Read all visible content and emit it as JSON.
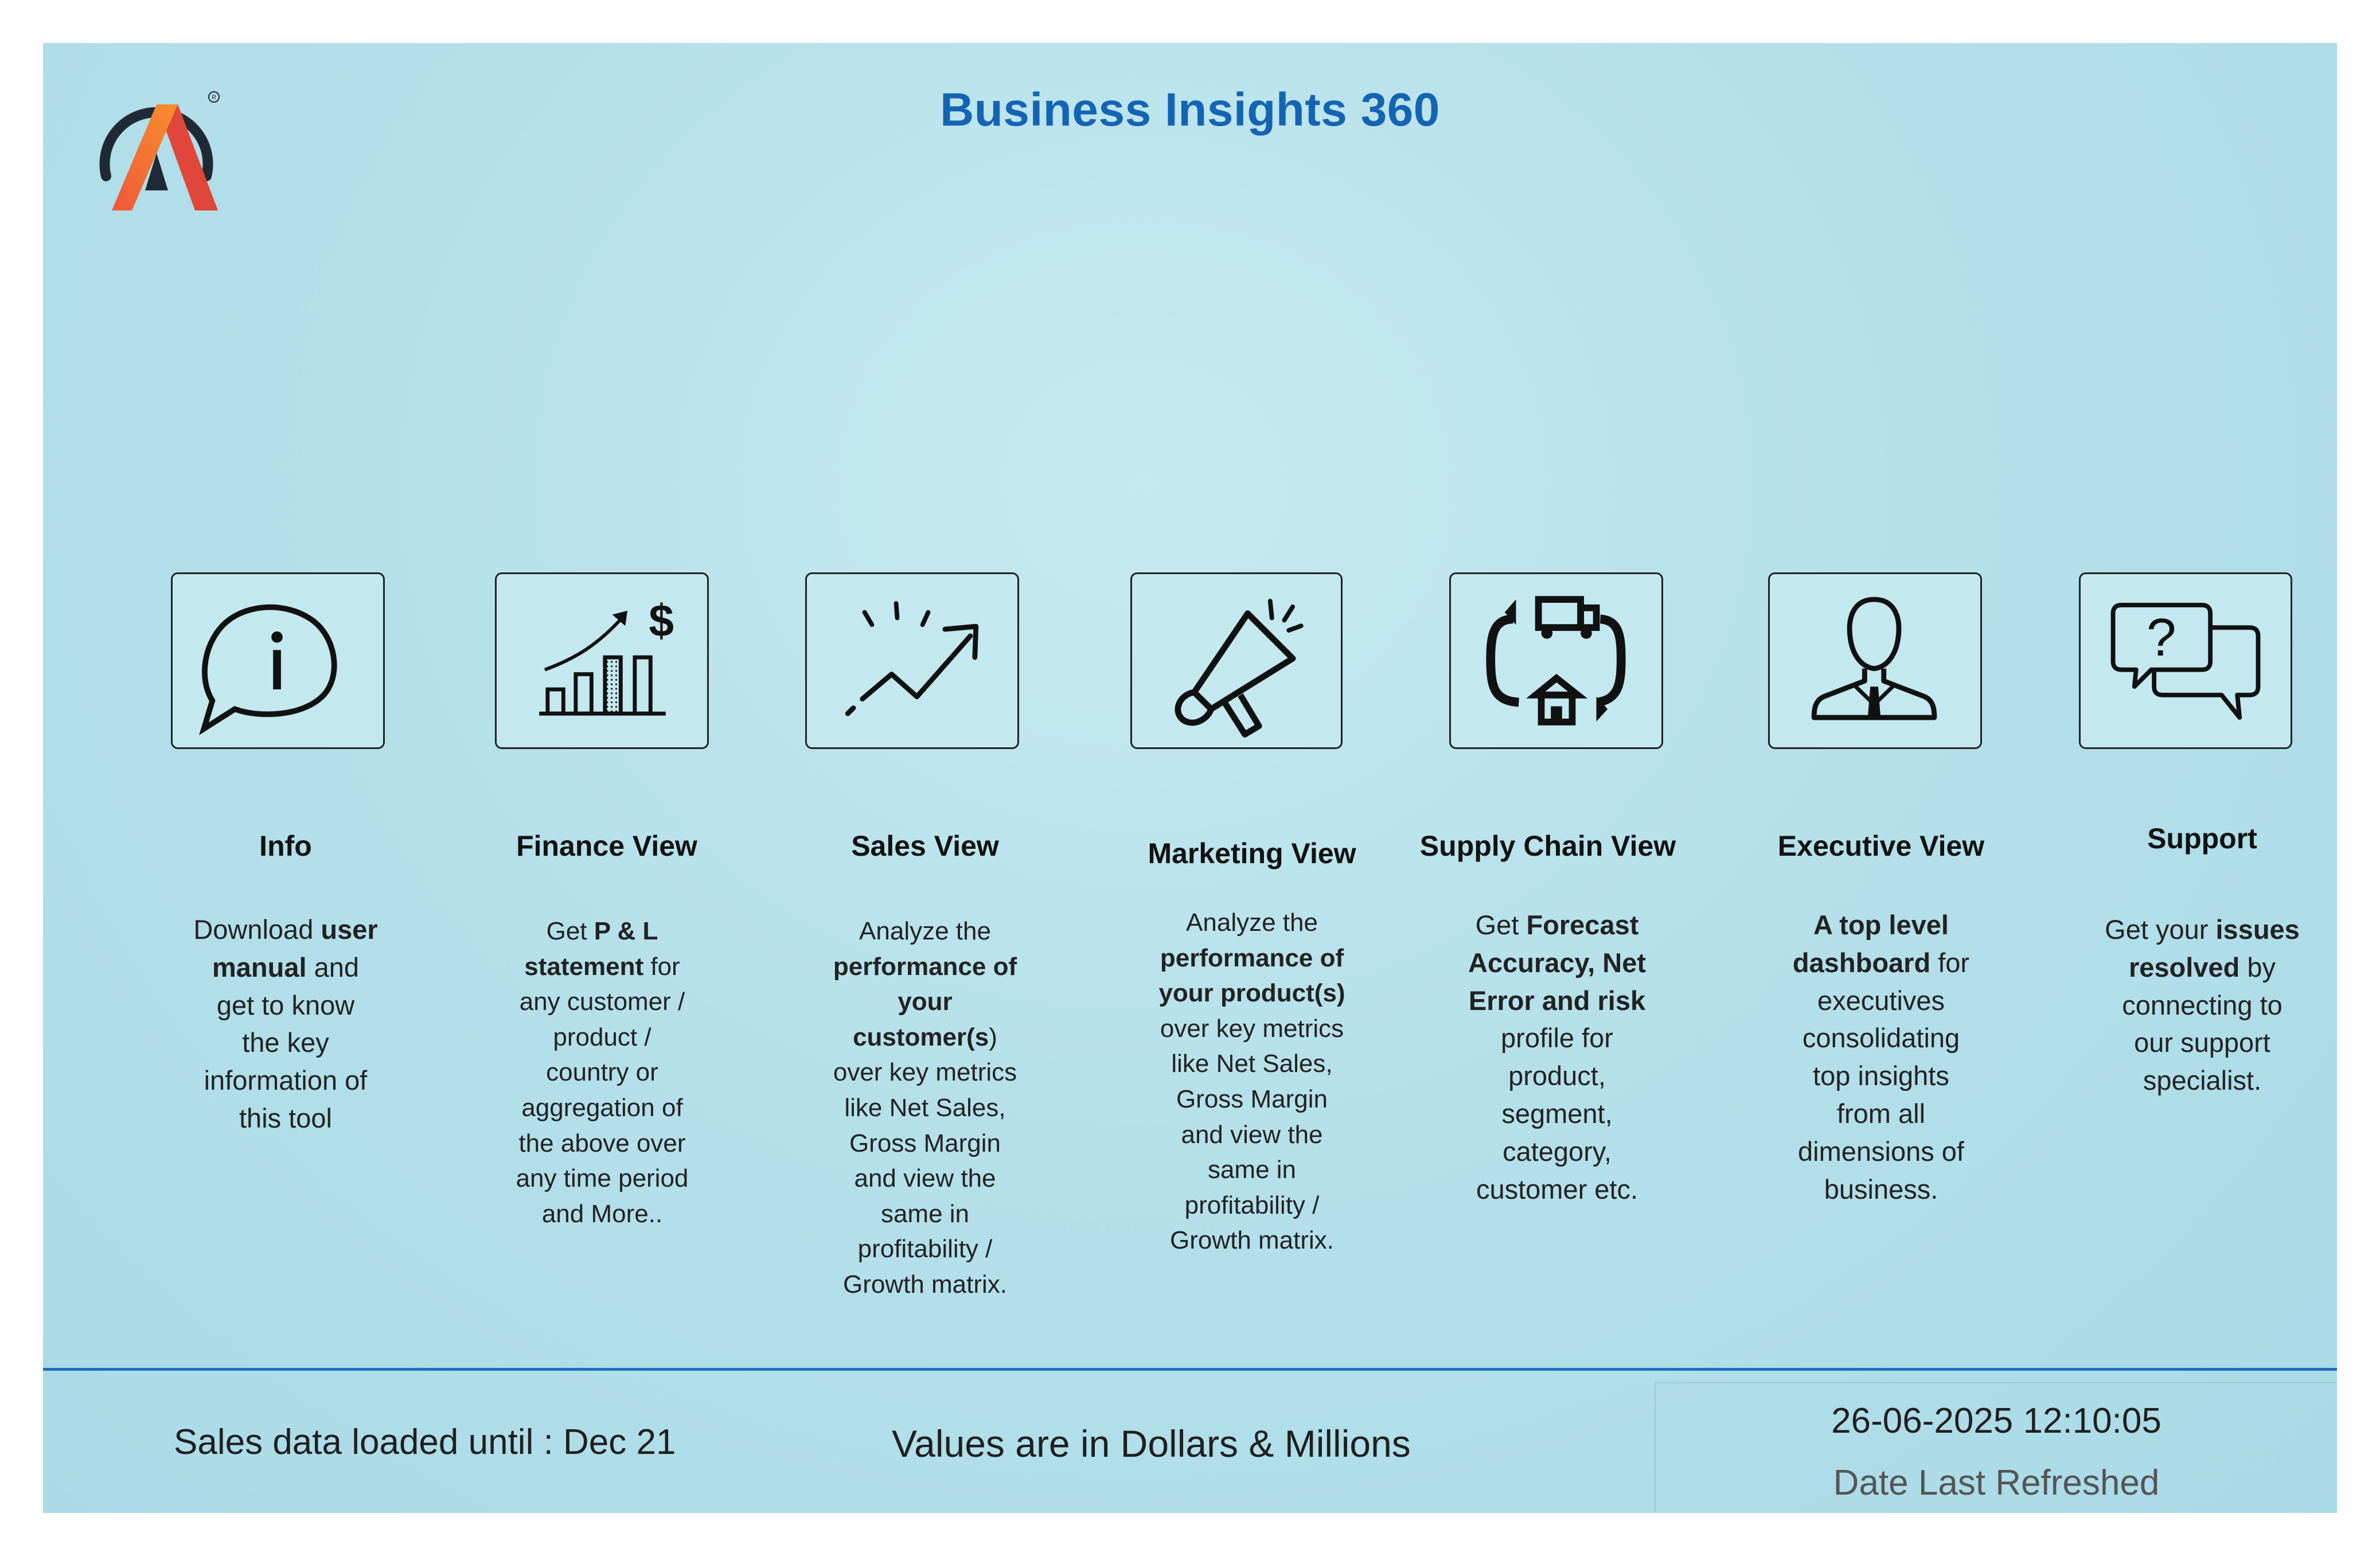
{
  "app": {
    "title": "Business Insights 360"
  },
  "tiles": [
    {
      "id": "info",
      "icon": "info-speech-bubble-icon",
      "title": "Info",
      "desc_lines": [
        [
          {
            "t": "Download "
          },
          {
            "t": "user",
            "b": true
          }
        ],
        [
          {
            "t": "manual",
            "b": true
          },
          {
            "t": " and"
          }
        ],
        [
          {
            "t": "get to know"
          }
        ],
        [
          {
            "t": "the key"
          }
        ],
        [
          {
            "t": "information of"
          }
        ],
        [
          {
            "t": "this tool"
          }
        ]
      ]
    },
    {
      "id": "finance",
      "icon": "finance-growth-chart-icon",
      "title": "Finance View",
      "desc_lines": [
        [
          {
            "t": "Get  "
          },
          {
            "t": "P & L",
            "b": true
          }
        ],
        [
          {
            "t": "statement",
            "b": true
          },
          {
            "t": " for"
          }
        ],
        [
          {
            "t": "any customer /"
          }
        ],
        [
          {
            "t": "product /"
          }
        ],
        [
          {
            "t": "country or"
          }
        ],
        [
          {
            "t": "aggregation of"
          }
        ],
        [
          {
            "t": "the above over"
          }
        ],
        [
          {
            "t": "any time period"
          }
        ],
        [
          {
            "t": "and More.."
          }
        ]
      ]
    },
    {
      "id": "sales",
      "icon": "sales-trend-arrow-icon",
      "title": "Sales View",
      "desc_lines": [
        [
          {
            "t": "Analyze the"
          }
        ],
        [
          {
            "t": "performance of",
            "b": true
          }
        ],
        [
          {
            "t": "your",
            "b": true
          }
        ],
        [
          {
            "t": "customer(s",
            "b": true
          },
          {
            "t": ")"
          }
        ],
        [
          {
            "t": "over key metrics"
          }
        ],
        [
          {
            "t": "like Net Sales,"
          }
        ],
        [
          {
            "t": "Gross Margin"
          }
        ],
        [
          {
            "t": "and view the"
          }
        ],
        [
          {
            "t": "same in"
          }
        ],
        [
          {
            "t": "profitability /"
          }
        ],
        [
          {
            "t": "Growth matrix."
          }
        ]
      ]
    },
    {
      "id": "marketing",
      "icon": "megaphone-icon",
      "title": "Marketing View",
      "desc_lines": [
        [
          {
            "t": "Analyze the"
          }
        ],
        [
          {
            "t": "performance of",
            "b": true
          }
        ],
        [
          {
            "t": "your product(s)",
            "b": true
          }
        ],
        [
          {
            "t": "over key metrics"
          }
        ],
        [
          {
            "t": "like Net Sales,"
          }
        ],
        [
          {
            "t": "Gross Margin"
          }
        ],
        [
          {
            "t": "and view the"
          }
        ],
        [
          {
            "t": "same in"
          }
        ],
        [
          {
            "t": "profitability /"
          }
        ],
        [
          {
            "t": "Growth matrix."
          }
        ]
      ]
    },
    {
      "id": "supply",
      "icon": "supply-chain-truck-warehouse-icon",
      "title": "Supply Chain View",
      "desc_lines": [
        [
          {
            "t": "Get "
          },
          {
            "t": "Forecast",
            "b": true
          }
        ],
        [
          {
            "t": "Accuracy, Net",
            "b": true
          }
        ],
        [
          {
            "t": "Error and risk",
            "b": true
          }
        ],
        [
          {
            "t": "profile for"
          }
        ],
        [
          {
            "t": "product,"
          }
        ],
        [
          {
            "t": "segment,"
          }
        ],
        [
          {
            "t": "category,"
          }
        ],
        [
          {
            "t": "customer etc."
          }
        ]
      ]
    },
    {
      "id": "executive",
      "icon": "executive-person-icon",
      "title": "Executive View",
      "desc_lines": [
        [
          {
            "t": "A top level",
            "b": true
          }
        ],
        [
          {
            "t": "dashboard",
            "b": true
          },
          {
            "t": " for"
          }
        ],
        [
          {
            "t": "executives"
          }
        ],
        [
          {
            "t": "consolidating"
          }
        ],
        [
          {
            "t": "top insights"
          }
        ],
        [
          {
            "t": "from all"
          }
        ],
        [
          {
            "t": "dimensions of"
          }
        ],
        [
          {
            "t": "business."
          }
        ]
      ]
    },
    {
      "id": "support",
      "icon": "support-question-chat-icon",
      "title": "Support",
      "desc_lines": [
        [
          {
            "t": "Get your "
          },
          {
            "t": "issues",
            "b": true
          }
        ],
        [
          {
            "t": "resolved",
            "b": true
          },
          {
            "t": " by"
          }
        ],
        [
          {
            "t": "connecting to"
          }
        ],
        [
          {
            "t": "our support"
          }
        ],
        [
          {
            "t": "specialist."
          }
        ]
      ]
    }
  ],
  "footer": {
    "sales_loaded": "Sales data loaded until : Dec 21",
    "values_note": "Values are in Dollars & Millions",
    "refresh_time": "26-06-2025 12:10:05",
    "refresh_label": "Date Last Refreshed"
  },
  "colors": {
    "title": "#1464b4",
    "divider": "#1f6fc0",
    "logo_orange": "#f26b2a",
    "logo_red": "#e0473a",
    "logo_dark": "#1f2a36"
  }
}
